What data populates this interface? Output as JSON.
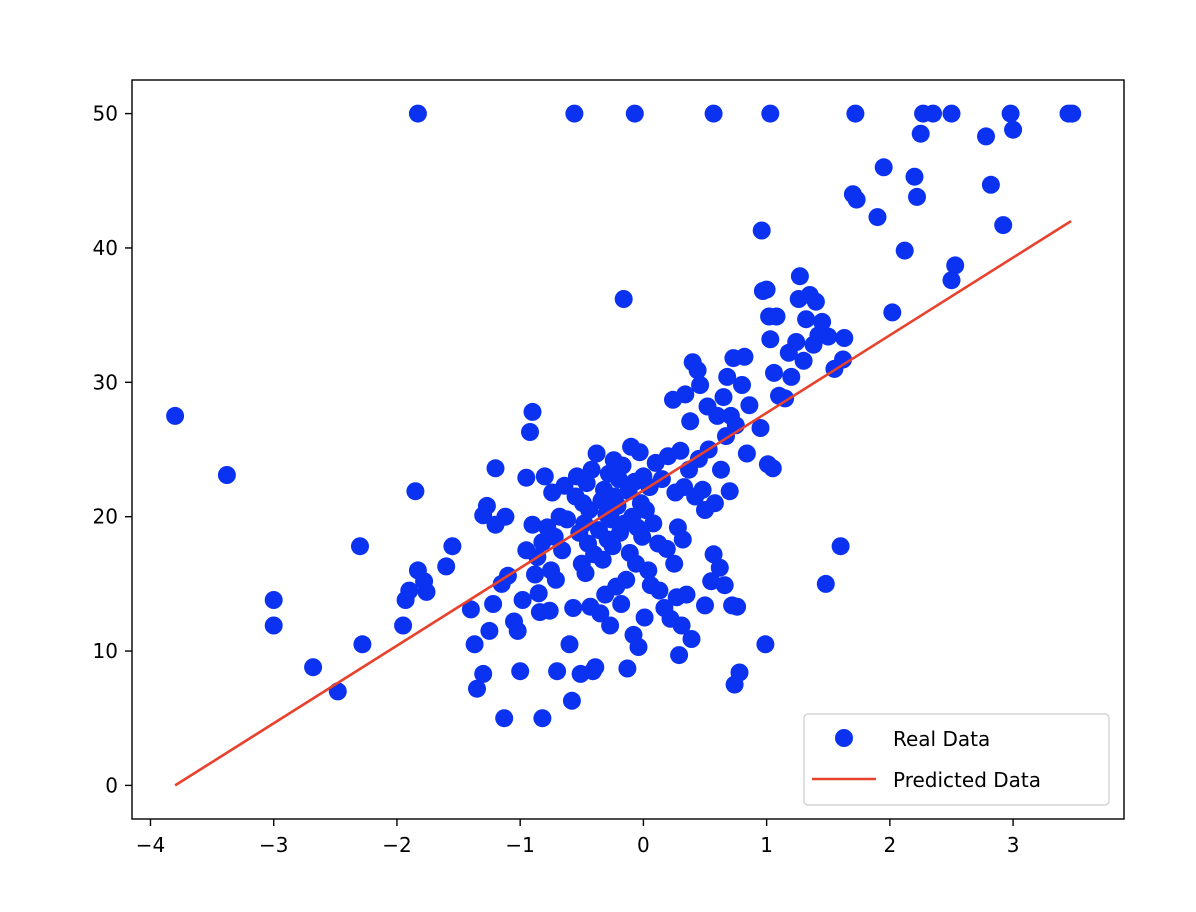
{
  "chart_data": {
    "type": "scatter",
    "title": "",
    "xlabel": "",
    "ylabel": "",
    "xlim": [
      -4.15,
      3.9
    ],
    "ylim": [
      -2.5,
      52.5
    ],
    "grid": false,
    "legend_position": "lower-right",
    "x_ticks": [
      -4,
      -3,
      -2,
      -1,
      0,
      1,
      2,
      3
    ],
    "y_ticks": [
      0,
      10,
      20,
      30,
      40,
      50
    ],
    "x_tick_labels": [
      "−4",
      "−3",
      "−2",
      "−1",
      "0",
      "1",
      "2",
      "3"
    ],
    "y_tick_labels": [
      "0",
      "10",
      "20",
      "30",
      "40",
      "50"
    ],
    "series": [
      {
        "name": "Real Data",
        "kind": "scatter",
        "color": "#0a32f0",
        "points": [
          [
            -3.8,
            27.5
          ],
          [
            -3.38,
            23.1
          ],
          [
            -3.0,
            13.8
          ],
          [
            -3.0,
            11.9
          ],
          [
            -2.68,
            8.8
          ],
          [
            -2.48,
            7.0
          ],
          [
            -2.3,
            17.8
          ],
          [
            -2.28,
            10.5
          ],
          [
            -1.95,
            11.9
          ],
          [
            -1.93,
            13.8
          ],
          [
            -1.9,
            14.5
          ],
          [
            -1.85,
            21.9
          ],
          [
            -1.83,
            16.0
          ],
          [
            -1.78,
            15.2
          ],
          [
            -1.76,
            14.4
          ],
          [
            -1.6,
            16.3
          ],
          [
            -1.55,
            17.8
          ],
          [
            -1.4,
            13.1
          ],
          [
            -1.37,
            10.5
          ],
          [
            -1.35,
            7.2
          ],
          [
            -1.3,
            8.3
          ],
          [
            -1.3,
            20.1
          ],
          [
            -1.27,
            20.8
          ],
          [
            -1.25,
            11.5
          ],
          [
            -1.22,
            13.5
          ],
          [
            -1.2,
            19.4
          ],
          [
            -1.2,
            23.6
          ],
          [
            -1.15,
            15.0
          ],
          [
            -1.13,
            5.0
          ],
          [
            -1.12,
            20.0
          ],
          [
            -1.1,
            15.6
          ],
          [
            -1.05,
            12.2
          ],
          [
            -1.02,
            11.5
          ],
          [
            -1.0,
            8.5
          ],
          [
            -0.98,
            13.8
          ],
          [
            -0.95,
            17.5
          ],
          [
            -0.95,
            22.9
          ],
          [
            -0.92,
            26.3
          ],
          [
            -0.9,
            27.8
          ],
          [
            -0.9,
            19.4
          ],
          [
            -0.88,
            15.7
          ],
          [
            -0.86,
            17.0
          ],
          [
            -0.85,
            14.3
          ],
          [
            -0.84,
            12.9
          ],
          [
            -0.82,
            18.1
          ],
          [
            -0.82,
            5.0
          ],
          [
            -0.8,
            23.0
          ],
          [
            -0.78,
            19.2
          ],
          [
            -0.76,
            13.0
          ],
          [
            -0.75,
            16.0
          ],
          [
            -0.74,
            21.8
          ],
          [
            -0.72,
            18.5
          ],
          [
            -0.71,
            15.3
          ],
          [
            -0.7,
            8.5
          ],
          [
            -0.68,
            20.0
          ],
          [
            -0.66,
            17.5
          ],
          [
            -0.64,
            22.3
          ],
          [
            -0.62,
            19.8
          ],
          [
            -0.6,
            10.5
          ],
          [
            -0.58,
            6.3
          ],
          [
            -0.57,
            13.2
          ],
          [
            -0.55,
            21.5
          ],
          [
            -0.54,
            23.0
          ],
          [
            -0.52,
            18.8
          ],
          [
            -0.51,
            8.3
          ],
          [
            -0.5,
            16.5
          ],
          [
            -0.49,
            21.0
          ],
          [
            -0.48,
            19.5
          ],
          [
            -0.47,
            15.8
          ],
          [
            -0.46,
            22.5
          ],
          [
            -0.45,
            18.0
          ],
          [
            -0.44,
            20.5
          ],
          [
            -0.43,
            13.3
          ],
          [
            -0.42,
            23.5
          ],
          [
            -0.41,
            8.5
          ],
          [
            -0.4,
            17.2
          ],
          [
            -0.39,
            8.8
          ],
          [
            -0.38,
            24.7
          ],
          [
            -0.36,
            19.0
          ],
          [
            -0.35,
            12.8
          ],
          [
            -0.34,
            21.2
          ],
          [
            -0.33,
            16.8
          ],
          [
            -0.32,
            22.0
          ],
          [
            -0.31,
            14.2
          ],
          [
            -0.3,
            20.2
          ],
          [
            -0.29,
            18.3
          ],
          [
            -0.28,
            23.2
          ],
          [
            -0.27,
            11.9
          ],
          [
            -0.26,
            19.8
          ],
          [
            -0.25,
            17.8
          ],
          [
            -0.24,
            24.2
          ],
          [
            -0.23,
            21.5
          ],
          [
            -0.22,
            14.8
          ],
          [
            -0.21,
            20.8
          ],
          [
            -0.2,
            22.8
          ],
          [
            -0.19,
            18.8
          ],
          [
            -0.18,
            13.5
          ],
          [
            -0.17,
            23.8
          ],
          [
            -0.16,
            36.2
          ],
          [
            -0.15,
            19.5
          ],
          [
            -0.14,
            15.3
          ],
          [
            -0.13,
            8.7
          ],
          [
            -0.12,
            21.9
          ],
          [
            -0.11,
            17.3
          ],
          [
            -0.1,
            25.2
          ],
          [
            -0.09,
            20.0
          ],
          [
            -0.08,
            11.2
          ],
          [
            -0.07,
            22.6
          ],
          [
            -0.06,
            16.5
          ],
          [
            -0.05,
            19.2
          ],
          [
            -0.04,
            10.3
          ],
          [
            -0.03,
            24.8
          ],
          [
            -0.02,
            21.0
          ],
          [
            -0.01,
            18.5
          ],
          [
            0.0,
            23.0
          ],
          [
            0.01,
            12.5
          ],
          [
            0.02,
            20.5
          ],
          [
            0.04,
            16.0
          ],
          [
            0.05,
            22.2
          ],
          [
            0.06,
            14.9
          ],
          [
            0.08,
            19.5
          ],
          [
            0.1,
            24.0
          ],
          [
            0.12,
            18.0
          ],
          [
            0.13,
            14.5
          ],
          [
            0.15,
            22.8
          ],
          [
            0.17,
            13.2
          ],
          [
            0.19,
            17.6
          ],
          [
            0.2,
            24.5
          ],
          [
            0.22,
            12.4
          ],
          [
            0.24,
            28.7
          ],
          [
            0.25,
            16.5
          ],
          [
            0.26,
            21.8
          ],
          [
            0.27,
            14.0
          ],
          [
            0.28,
            19.2
          ],
          [
            0.29,
            9.7
          ],
          [
            0.3,
            24.9
          ],
          [
            0.31,
            11.9
          ],
          [
            0.32,
            18.3
          ],
          [
            0.33,
            22.2
          ],
          [
            0.34,
            29.1
          ],
          [
            0.35,
            14.2
          ],
          [
            0.37,
            23.5
          ],
          [
            0.38,
            27.1
          ],
          [
            0.39,
            10.9
          ],
          [
            0.4,
            31.5
          ],
          [
            0.42,
            21.5
          ],
          [
            0.44,
            30.9
          ],
          [
            0.45,
            24.3
          ],
          [
            0.46,
            29.8
          ],
          [
            0.48,
            22.0
          ],
          [
            0.5,
            20.5
          ],
          [
            0.5,
            13.4
          ],
          [
            0.52,
            28.2
          ],
          [
            0.53,
            25.0
          ],
          [
            0.55,
            15.2
          ],
          [
            0.57,
            17.2
          ],
          [
            0.58,
            21.0
          ],
          [
            0.6,
            27.5
          ],
          [
            0.62,
            16.2
          ],
          [
            0.63,
            23.5
          ],
          [
            0.65,
            28.9
          ],
          [
            0.66,
            14.9
          ],
          [
            0.67,
            26.0
          ],
          [
            0.68,
            30.4
          ],
          [
            0.7,
            21.9
          ],
          [
            0.71,
            27.5
          ],
          [
            0.72,
            13.4
          ],
          [
            0.73,
            31.8
          ],
          [
            0.74,
            7.5
          ],
          [
            0.75,
            26.8
          ],
          [
            0.76,
            13.3
          ],
          [
            0.78,
            8.4
          ],
          [
            0.8,
            29.8
          ],
          [
            0.82,
            31.9
          ],
          [
            0.84,
            24.7
          ],
          [
            0.86,
            28.3
          ],
          [
            0.95,
            26.6
          ],
          [
            0.96,
            41.3
          ],
          [
            0.97,
            36.8
          ],
          [
            0.99,
            10.5
          ],
          [
            1.0,
            36.9
          ],
          [
            1.01,
            23.9
          ],
          [
            1.02,
            34.9
          ],
          [
            1.03,
            33.2
          ],
          [
            1.05,
            23.6
          ],
          [
            1.06,
            30.7
          ],
          [
            1.08,
            34.9
          ],
          [
            1.1,
            29.0
          ],
          [
            1.15,
            28.8
          ],
          [
            1.18,
            32.2
          ],
          [
            1.2,
            30.4
          ],
          [
            1.24,
            33.0
          ],
          [
            1.26,
            36.2
          ],
          [
            1.27,
            37.9
          ],
          [
            1.3,
            31.6
          ],
          [
            1.32,
            34.7
          ],
          [
            1.35,
            36.5
          ],
          [
            1.38,
            32.8
          ],
          [
            1.4,
            36.0
          ],
          [
            1.42,
            33.5
          ],
          [
            1.45,
            34.5
          ],
          [
            1.5,
            33.4
          ],
          [
            1.48,
            15.0
          ],
          [
            1.55,
            31.0
          ],
          [
            1.6,
            17.8
          ],
          [
            1.62,
            31.7
          ],
          [
            1.63,
            33.3
          ],
          [
            1.7,
            44.0
          ],
          [
            1.73,
            43.6
          ],
          [
            1.9,
            42.3
          ],
          [
            1.95,
            46.0
          ],
          [
            2.02,
            35.2
          ],
          [
            2.12,
            39.8
          ],
          [
            2.2,
            45.3
          ],
          [
            2.22,
            43.8
          ],
          [
            2.25,
            48.5
          ],
          [
            2.5,
            37.6
          ],
          [
            2.53,
            38.7
          ],
          [
            2.78,
            48.3
          ],
          [
            2.82,
            44.7
          ],
          [
            2.92,
            41.7
          ],
          [
            3.0,
            48.8
          ],
          [
            -1.83,
            50.0
          ],
          [
            -0.56,
            50.0
          ],
          [
            -0.07,
            50.0
          ],
          [
            0.57,
            50.0
          ],
          [
            1.03,
            50.0
          ],
          [
            1.72,
            50.0
          ],
          [
            2.27,
            50.0
          ],
          [
            2.35,
            50.0
          ],
          [
            2.5,
            50.0
          ],
          [
            2.98,
            50.0
          ],
          [
            3.45,
            50.0
          ],
          [
            3.48,
            50.0
          ]
        ]
      },
      {
        "name": "Predicted Data",
        "kind": "line",
        "color": "#e8412c",
        "points": [
          [
            -3.8,
            0.0
          ],
          [
            3.47,
            42.0
          ]
        ]
      }
    ]
  }
}
